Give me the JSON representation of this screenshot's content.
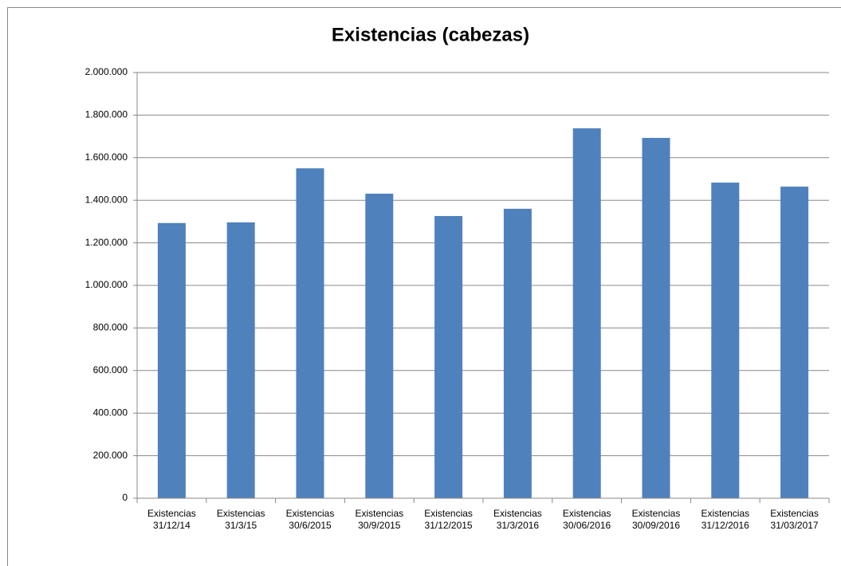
{
  "chart_data": {
    "type": "bar",
    "title": "Existencias (cabezas)",
    "categories": [
      "Existencias 31/12/14",
      "Existencias 31/3/15",
      "Existencias 30/6/2015",
      "Existencias 30/9/2015",
      "Existencias 31/12/2015",
      "Existencias 31/3/2016",
      "Existencias 30/06/2016",
      "Existencias 30/09/2016",
      "Existencias 31/12/2016",
      "Existencias 31/03/2017"
    ],
    "values": [
      1293000,
      1296000,
      1550000,
      1431000,
      1326000,
      1360000,
      1738000,
      1693000,
      1483000,
      1464000
    ],
    "color": "#4f81bd",
    "ylim": [
      0,
      2000000
    ],
    "yticks": [
      0,
      {
        "value": 200000,
        "label": "200.000"
      },
      {
        "value": 400000,
        "label": "400.000"
      },
      {
        "value": 600000,
        "label": "600.000"
      },
      {
        "value": 800000,
        "label": "800.000"
      },
      {
        "value": 1000000,
        "label": "1.000.000"
      },
      {
        "value": 1200000,
        "label": "1.200.000"
      },
      {
        "value": 1400000,
        "label": "1.400.000"
      },
      {
        "value": 1600000,
        "label": "1.600.000"
      },
      {
        "value": 1800000,
        "label": "1.800.000"
      },
      {
        "value": 2000000,
        "label": "2.000.000"
      }
    ],
    "grid": true
  }
}
